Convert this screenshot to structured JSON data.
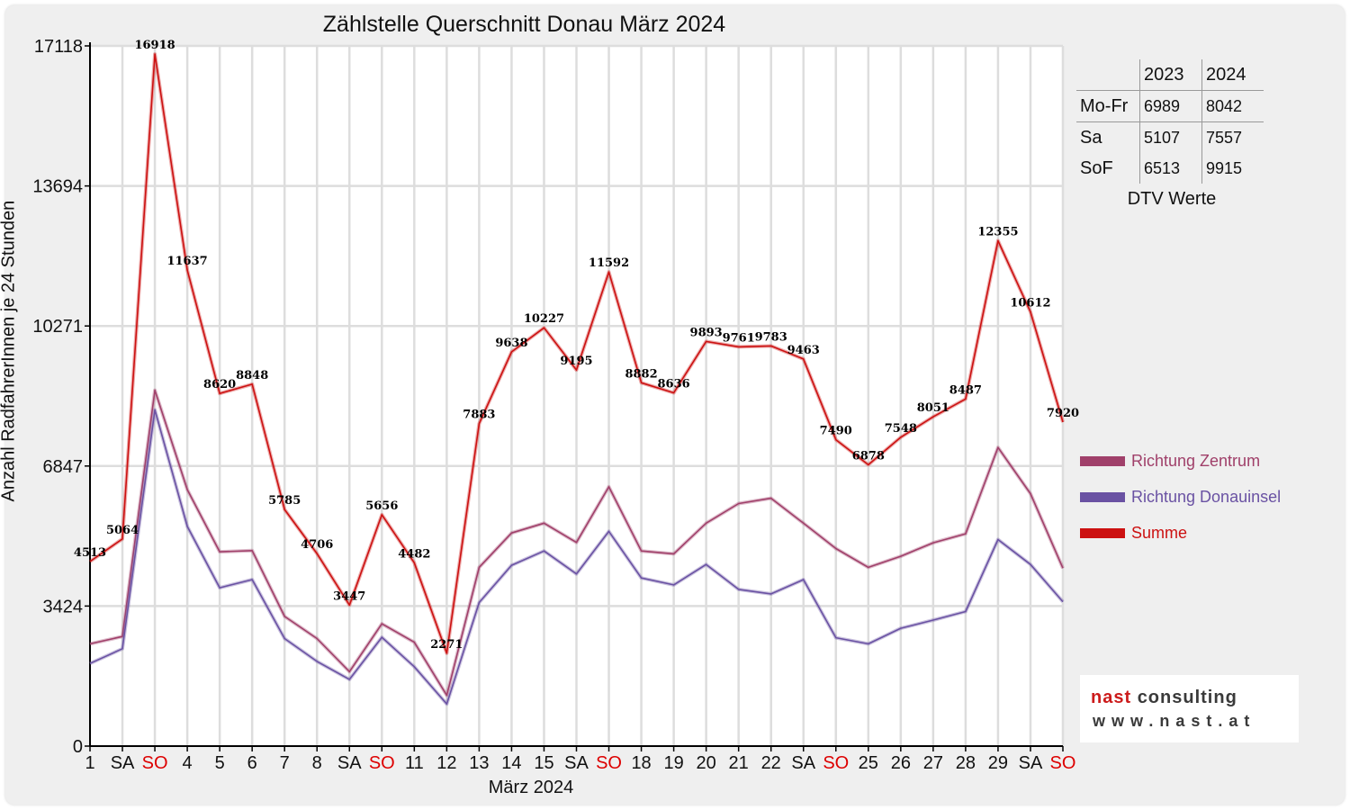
{
  "chart_data": {
    "type": "line",
    "title": "Zählstelle Querschnitt Donau März 2024",
    "xlabel": "März 2024",
    "ylabel": "Anzahl RadfahrerInnen je 24 Stunden",
    "ylim": [
      0,
      17118
    ],
    "yticks": [
      0,
      3424,
      6847,
      10271,
      13694,
      17118
    ],
    "grid": true,
    "legend_position": "right",
    "categories": [
      "1",
      "SA",
      "SO",
      "4",
      "5",
      "6",
      "7",
      "8",
      "SA",
      "SO",
      "11",
      "12",
      "13",
      "14",
      "15",
      "SA",
      "SO",
      "18",
      "19",
      "20",
      "21",
      "22",
      "SA",
      "SO",
      "25",
      "26",
      "27",
      "28",
      "29",
      "SA",
      "SO"
    ],
    "highlight_categories": [
      "SO"
    ],
    "series": [
      {
        "name": "Richtung Zentrum",
        "color": "#a0406a",
        "values": [
          2500,
          2680,
          8700,
          6270,
          4750,
          4780,
          3170,
          2630,
          1820,
          2990,
          2540,
          1240,
          4370,
          5210,
          5450,
          4980,
          6340,
          4770,
          4700,
          5450,
          5930,
          6060,
          5450,
          4830,
          4370,
          4640,
          4970,
          5190,
          7300,
          6170,
          4350
        ]
      },
      {
        "name": "Richtung Donauinsel",
        "color": "#6a52a3",
        "values": [
          2020,
          2380,
          8220,
          5370,
          3870,
          4070,
          2630,
          2070,
          1630,
          2660,
          1940,
          1030,
          3510,
          4420,
          4770,
          4210,
          5250,
          4110,
          3940,
          4440,
          3830,
          3720,
          4070,
          2650,
          2500,
          2880,
          3080,
          3290,
          5050,
          4440,
          3530
        ]
      },
      {
        "name": "Summe",
        "color": "#cc1111",
        "values": [
          4513,
          5064,
          16918,
          11637,
          8620,
          8848,
          5785,
          4706,
          3447,
          5656,
          4482,
          2271,
          7883,
          9638,
          10227,
          9195,
          11592,
          8882,
          8636,
          9893,
          9761,
          9783,
          9463,
          7490,
          6878,
          7548,
          8051,
          8487,
          12355,
          10612,
          7920
        ]
      }
    ]
  },
  "dtv_table": {
    "headers": [
      "",
      "2023",
      "2024"
    ],
    "rows": [
      [
        "Mo-Fr",
        "6989",
        "8042"
      ],
      [
        "Sa",
        "5107",
        "7557"
      ],
      [
        "SoF",
        "6513",
        "9915"
      ]
    ],
    "caption": "DTV Werte"
  },
  "logo": {
    "name_part1": "nast",
    "name_part2": "consulting",
    "url": "www.nast.at"
  }
}
